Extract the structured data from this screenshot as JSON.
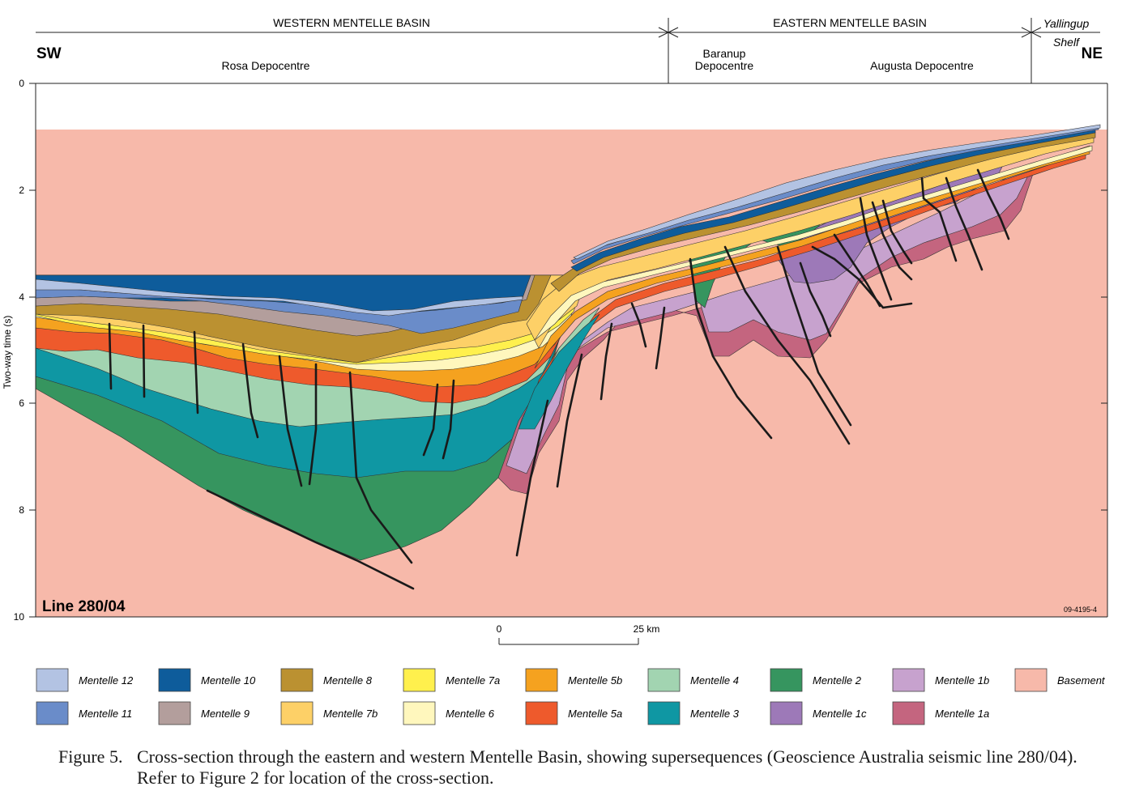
{
  "header": {
    "western_basin": "WESTERN MENTELLE BASIN",
    "eastern_basin": "EASTERN MENTELLE BASIN",
    "shelf_line1": "Yallingup",
    "shelf_line2": "Shelf",
    "sw": "SW",
    "ne": "NE",
    "rosa": "Rosa Depocentre",
    "baranup_line1": "Baranup",
    "baranup_line2": "Depocentre",
    "augusta": "Augusta Depocentre"
  },
  "axis": {
    "label": "Two-way time (s)",
    "ticks": [
      "0",
      "2",
      "4",
      "6",
      "8",
      "10"
    ]
  },
  "line_label": "Line 280/04",
  "figure_code": "09-4195-4",
  "scale_bar": {
    "start": "0",
    "end": "25 km"
  },
  "legend": [
    {
      "name": "Mentelle 12",
      "color": "#b3c3e3"
    },
    {
      "name": "Mentelle 10",
      "color": "#0e5c9b"
    },
    {
      "name": "Mentelle 8",
      "color": "#bb9131"
    },
    {
      "name": "Mentelle 7a",
      "color": "#fff04d"
    },
    {
      "name": "Mentelle 5b",
      "color": "#f5a21f"
    },
    {
      "name": "Mentelle 4",
      "color": "#a2d4b1"
    },
    {
      "name": "Mentelle 2",
      "color": "#36955f"
    },
    {
      "name": "Mentelle 1b",
      "color": "#c7a2ce"
    },
    {
      "name": "Basement",
      "color": "#f7b9aa"
    },
    {
      "name": "Mentelle 11",
      "color": "#6a8cc9"
    },
    {
      "name": "Mentelle 9",
      "color": "#b39e9c"
    },
    {
      "name": "Mentelle 7b",
      "color": "#fdd067"
    },
    {
      "name": "Mentelle 6",
      "color": "#fff7bd"
    },
    {
      "name": "Mentelle 5a",
      "color": "#ee5a2c"
    },
    {
      "name": "Mentelle 3",
      "color": "#0f97a3"
    },
    {
      "name": "Mentelle 1c",
      "color": "#9d79b8"
    },
    {
      "name": "Mentelle 1a",
      "color": "#c4657f"
    }
  ],
  "caption": {
    "number": "Figure 5.",
    "text": "Cross-section through the eastern and western Mentelle Basin, showing supersequences (Geoscience Australia seismic line 280/04). Refer to Figure 2 for location of the cross-section."
  }
}
